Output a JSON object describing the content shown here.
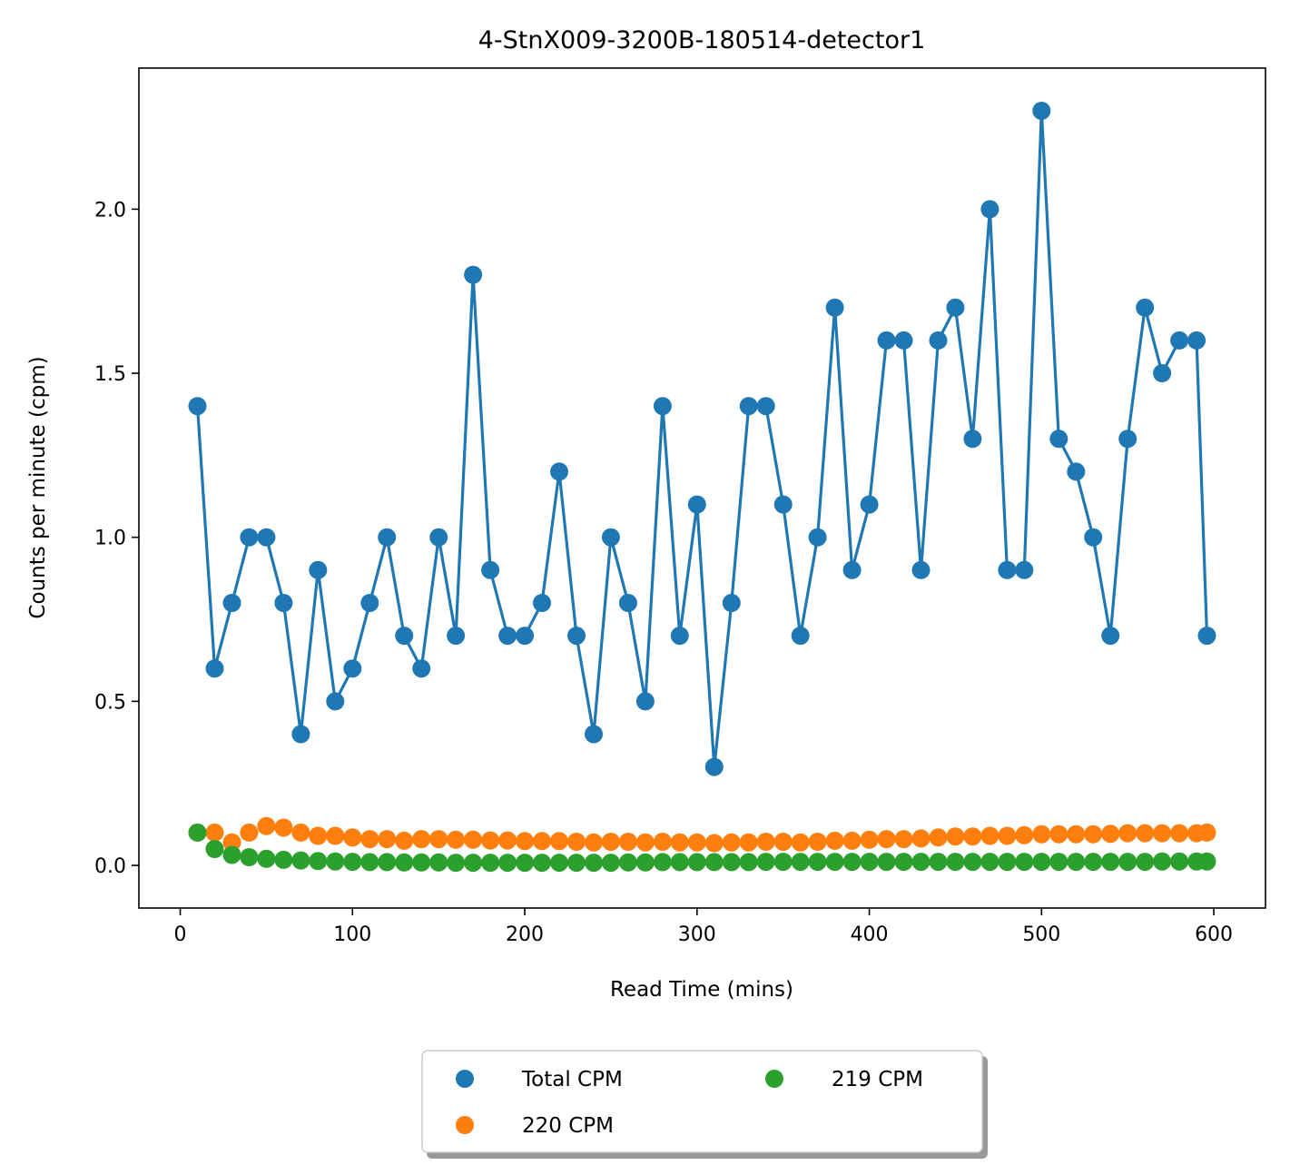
{
  "chart_data": {
    "type": "line",
    "title": "4-StnX009-3200B-180514-detector1",
    "xlabel": "Read Time (mins)",
    "ylabel": "Counts per minute (cpm)",
    "xlim": [
      -24,
      630
    ],
    "ylim": [
      -0.13,
      2.43
    ],
    "xticks": [
      0,
      100,
      200,
      300,
      400,
      500,
      600
    ],
    "yticks": [
      0.0,
      0.5,
      1.0,
      1.5,
      2.0
    ],
    "ytick_labels": [
      "0.0",
      "0.5",
      "1.0",
      "1.5",
      "2.0"
    ],
    "grid": false,
    "legend_position": "bottom-center, below axes, two columns, shadowed frame",
    "series": [
      {
        "name": "Total CPM",
        "color": "#1f77b4",
        "line": true,
        "x": [
          10,
          20,
          30,
          40,
          50,
          60,
          70,
          80,
          90,
          100,
          110,
          120,
          130,
          140,
          150,
          160,
          170,
          180,
          190,
          200,
          210,
          220,
          230,
          240,
          250,
          260,
          270,
          280,
          290,
          300,
          310,
          320,
          330,
          340,
          350,
          360,
          370,
          380,
          390,
          400,
          410,
          420,
          430,
          440,
          450,
          460,
          470,
          480,
          490,
          500,
          510,
          520,
          530,
          540,
          550,
          560,
          570,
          580,
          590,
          596
        ],
        "y": [
          1.4,
          0.6,
          0.8,
          1.0,
          1.0,
          0.8,
          0.4,
          0.9,
          0.5,
          0.6,
          0.8,
          1.0,
          0.7,
          0.6,
          1.0,
          0.7,
          1.8,
          0.9,
          0.7,
          0.7,
          0.8,
          1.2,
          0.7,
          0.4,
          1.0,
          0.8,
          0.5,
          1.4,
          0.7,
          1.1,
          0.3,
          0.8,
          1.4,
          1.4,
          1.1,
          0.7,
          1.0,
          1.7,
          0.9,
          1.1,
          1.6,
          1.6,
          0.9,
          1.6,
          1.7,
          1.3,
          2.0,
          0.9,
          0.9,
          2.3,
          1.3,
          1.2,
          1.0,
          0.7,
          1.3,
          1.7,
          1.5,
          1.6,
          1.6,
          0.7
        ]
      },
      {
        "name": "220 CPM",
        "color": "#ff7f0e",
        "line": false,
        "x": [
          10,
          20,
          30,
          40,
          50,
          60,
          70,
          80,
          90,
          100,
          110,
          120,
          130,
          140,
          150,
          160,
          170,
          180,
          190,
          200,
          210,
          220,
          230,
          240,
          250,
          260,
          270,
          280,
          290,
          300,
          310,
          320,
          330,
          340,
          350,
          360,
          370,
          380,
          390,
          400,
          410,
          420,
          430,
          440,
          450,
          460,
          470,
          480,
          490,
          500,
          510,
          520,
          530,
          540,
          550,
          560,
          570,
          580,
          590,
          596
        ],
        "y": [
          0.1,
          0.1,
          0.07,
          0.1,
          0.12,
          0.115,
          0.1,
          0.09,
          0.09,
          0.085,
          0.08,
          0.08,
          0.075,
          0.08,
          0.08,
          0.078,
          0.078,
          0.076,
          0.076,
          0.074,
          0.074,
          0.074,
          0.072,
          0.07,
          0.072,
          0.072,
          0.07,
          0.072,
          0.07,
          0.07,
          0.068,
          0.07,
          0.07,
          0.072,
          0.072,
          0.07,
          0.072,
          0.075,
          0.075,
          0.078,
          0.08,
          0.08,
          0.082,
          0.085,
          0.088,
          0.088,
          0.09,
          0.09,
          0.092,
          0.095,
          0.095,
          0.095,
          0.095,
          0.096,
          0.098,
          0.098,
          0.098,
          0.098,
          0.098,
          0.1
        ]
      },
      {
        "name": "219 CPM",
        "color": "#2ca02c",
        "line": false,
        "x": [
          10,
          20,
          30,
          40,
          50,
          60,
          70,
          80,
          90,
          100,
          110,
          120,
          130,
          140,
          150,
          160,
          170,
          180,
          190,
          200,
          210,
          220,
          230,
          240,
          250,
          260,
          270,
          280,
          290,
          300,
          310,
          320,
          330,
          340,
          350,
          360,
          370,
          380,
          390,
          400,
          410,
          420,
          430,
          440,
          450,
          460,
          470,
          480,
          490,
          500,
          510,
          520,
          530,
          540,
          550,
          560,
          570,
          580,
          590,
          596
        ],
        "y": [
          0.1,
          0.05,
          0.032,
          0.025,
          0.02,
          0.017,
          0.015,
          0.013,
          0.012,
          0.011,
          0.01,
          0.01,
          0.009,
          0.009,
          0.009,
          0.008,
          0.008,
          0.008,
          0.008,
          0.008,
          0.008,
          0.008,
          0.008,
          0.008,
          0.008,
          0.009,
          0.009,
          0.01,
          0.01,
          0.01,
          0.01,
          0.01,
          0.01,
          0.011,
          0.011,
          0.011,
          0.011,
          0.011,
          0.011,
          0.011,
          0.011,
          0.011,
          0.011,
          0.011,
          0.011,
          0.011,
          0.011,
          0.011,
          0.011,
          0.011,
          0.011,
          0.011,
          0.011,
          0.011,
          0.011,
          0.011,
          0.012,
          0.012,
          0.012,
          0.012
        ]
      }
    ]
  }
}
